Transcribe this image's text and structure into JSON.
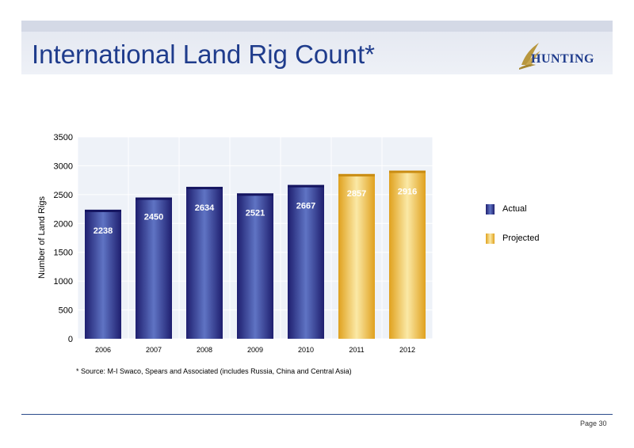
{
  "slide": {
    "title": "International Land Rig Count*",
    "logo_text": "HUNTING",
    "footnote": "* Source: M-I Swaco, Spears and Associated (includes Russia, China and Central Asia)",
    "page": "Page 30"
  },
  "colors": {
    "title": "#1f3c8c",
    "actual": "#2a2a86",
    "projected": "#e3a52a",
    "plot_bg": "#eef2f8",
    "gridline": "#ffffff"
  },
  "chart_data": {
    "type": "bar",
    "categories": [
      "2006",
      "2007",
      "2008",
      "2009",
      "2010",
      "2011",
      "2012"
    ],
    "values": [
      2238,
      2450,
      2634,
      2521,
      2667,
      2857,
      2916
    ],
    "status": [
      "Actual",
      "Actual",
      "Actual",
      "Actual",
      "Actual",
      "Projected",
      "Projected"
    ],
    "data_labels": [
      "2238",
      "2450",
      "2634",
      "2521",
      "2667",
      "2857",
      "2916"
    ],
    "ylabel": "Number of Land Rigs",
    "xlabel": "",
    "ylim": [
      0,
      3500
    ],
    "yticks": [
      0,
      500,
      1000,
      1500,
      2000,
      2500,
      3000,
      3500
    ],
    "ytick_labels": [
      "0",
      "500",
      "1000",
      "1500",
      "2000",
      "2500",
      "3000",
      "3500"
    ],
    "grid": true,
    "legend": {
      "placement": "right",
      "entries": [
        {
          "name": "Actual",
          "color": "#2a2a86"
        },
        {
          "name": "Projected",
          "color": "#e3a52a"
        }
      ]
    }
  }
}
